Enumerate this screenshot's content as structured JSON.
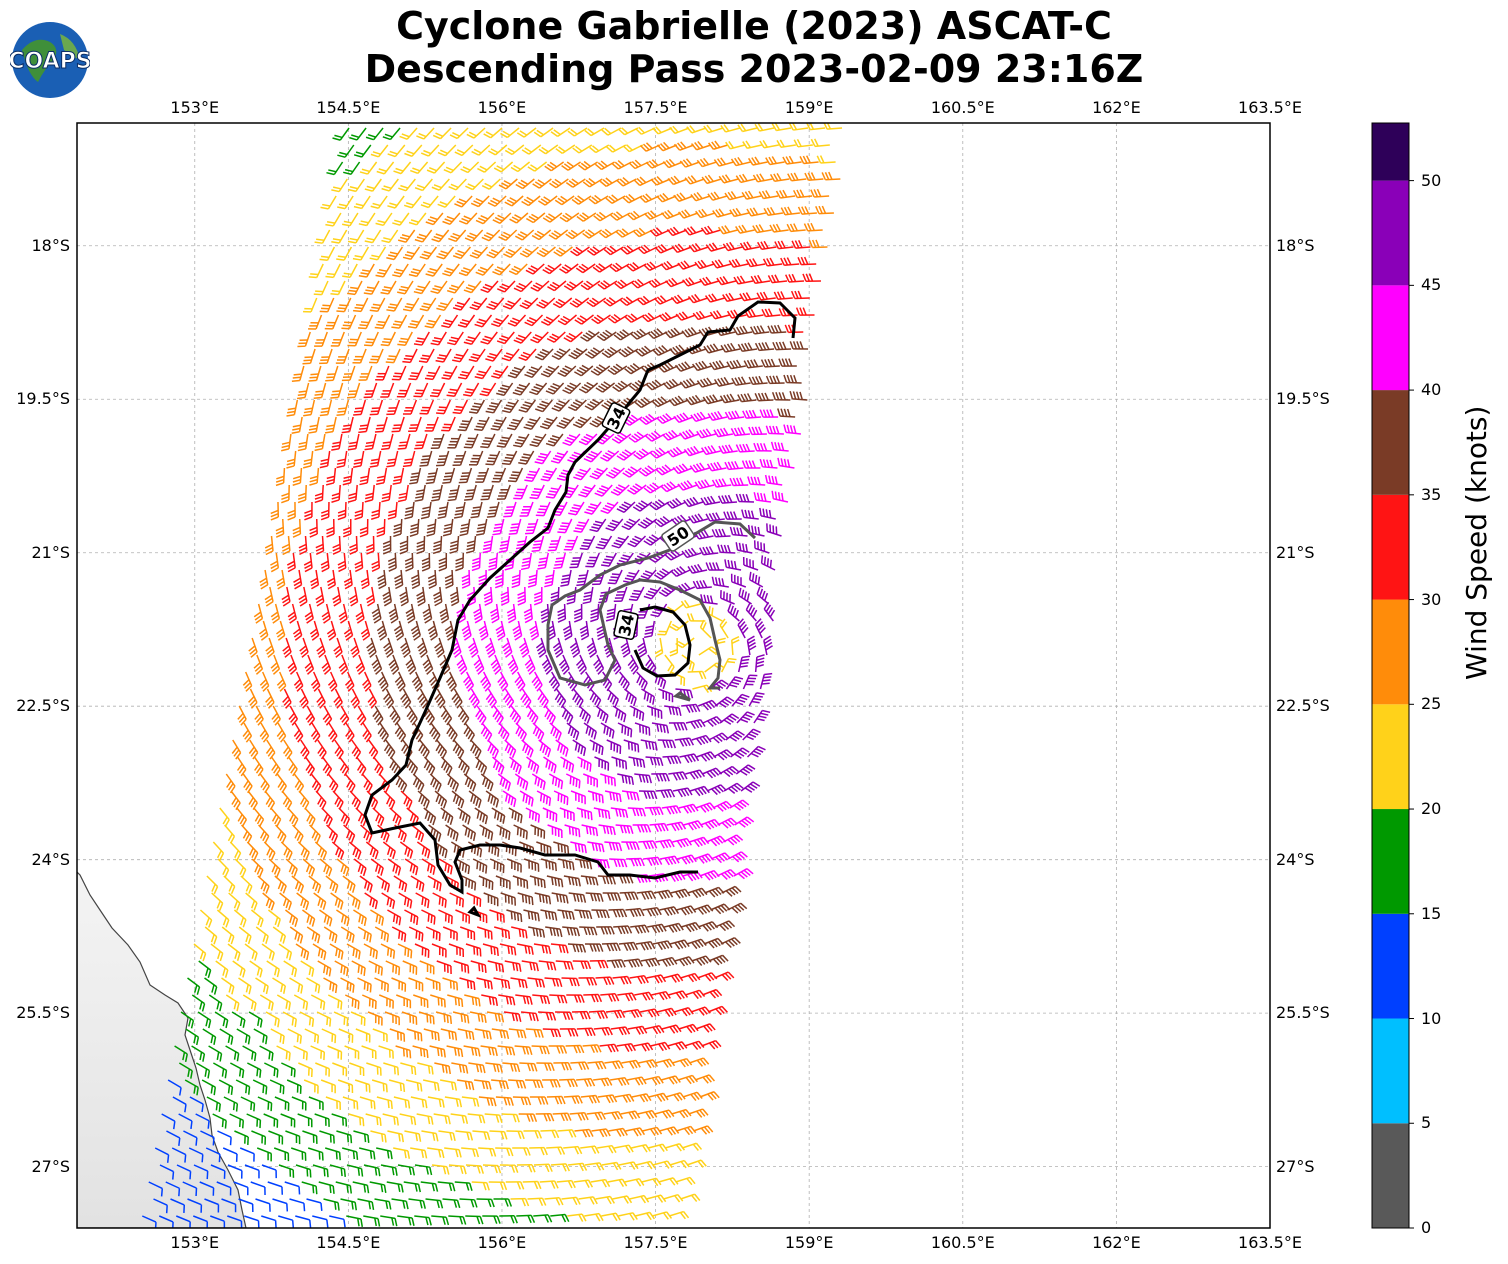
{
  "title_line1": "Cyclone Gabrielle (2023) ASCAT-C",
  "title_line2": "Descending Pass 2023-02-09 23:16Z",
  "logo_text": "COAPS",
  "lon_ticks": [
    "153°E",
    "154.5°E",
    "156°E",
    "157.5°E",
    "159°E",
    "160.5°E",
    "162°E",
    "163.5°E"
  ],
  "lat_ticks": [
    "18°S",
    "19.5°S",
    "21°S",
    "22.5°S",
    "24°S",
    "25.5°S",
    "27°S"
  ],
  "contour_labels": [
    "34",
    "50",
    "34"
  ],
  "colorbar": {
    "label": "Wind Speed (knots)",
    "ticks": [
      "0",
      "5",
      "10",
      "15",
      "20",
      "25",
      "30",
      "35",
      "40",
      "45",
      "50"
    ],
    "colors": [
      "#595959",
      "#00bfff",
      "#0040ff",
      "#009900",
      "#ffd21a",
      "#ff8c0a",
      "#ff1414",
      "#7a3b26",
      "#ff00ff",
      "#8a00b8",
      "#2e0059"
    ]
  },
  "map_extent": {
    "lon_min": 151.85,
    "lon_max": 163.5,
    "lat_max": -16.8,
    "lat_min": -27.6
  }
}
